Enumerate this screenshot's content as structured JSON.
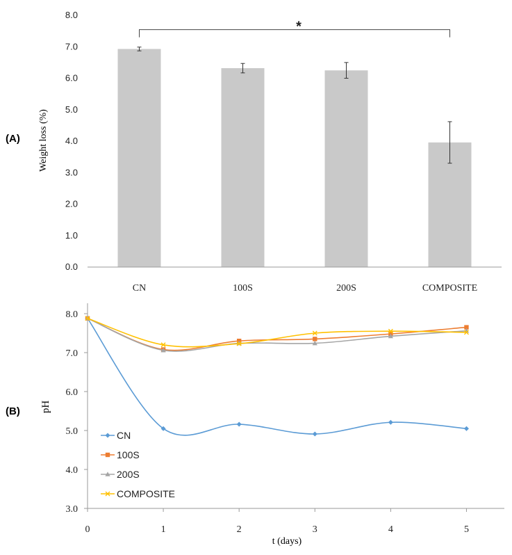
{
  "panel_labels": {
    "a": "(A)",
    "b": "(B)"
  },
  "colors": {
    "bar": "#c9c9c9",
    "axis": "#9a9a9a",
    "text": "#222222",
    "errorbar": "#333333",
    "cn": "#5b9bd5",
    "s100": "#ed7d31",
    "s200": "#a5a5a5",
    "composite": "#ffc000"
  },
  "chart_data": [
    {
      "type": "bar",
      "title": "",
      "xlabel": "",
      "ylabel": "Weight loss (%)",
      "ylim": [
        0,
        8
      ],
      "ytick_step": 1,
      "ytick_labels": [
        "0.0",
        "1.0",
        "2.0",
        "3.0",
        "4.0",
        "5.0",
        "6.0",
        "7.0",
        "8.0"
      ],
      "categories": [
        "CN",
        "100S",
        "200S",
        "COMPOSITE"
      ],
      "values": [
        6.93,
        6.32,
        6.25,
        3.96
      ],
      "errors": [
        0.06,
        0.15,
        0.25,
        0.66
      ],
      "significance": {
        "from": "CN",
        "to": "COMPOSITE",
        "label": "*",
        "y": 7.5
      }
    },
    {
      "type": "line",
      "title": "",
      "xlabel": "t (days)",
      "ylabel": "pH",
      "xlim": [
        0,
        5.5
      ],
      "ylim": [
        3,
        8
      ],
      "x": [
        0,
        1,
        2,
        3,
        4,
        5
      ],
      "xtick_labels": [
        "0",
        "1",
        "2",
        "3",
        "4",
        "5"
      ],
      "ytick_labels": [
        "3.0",
        "4.0",
        "5.0",
        "6.0",
        "7.0",
        "8.0"
      ],
      "legend_position": "bottom-left",
      "series": [
        {
          "name": "CN",
          "color_key": "cn",
          "marker": "diamond",
          "values": [
            7.88,
            5.05,
            5.16,
            4.91,
            5.21,
            5.05
          ]
        },
        {
          "name": "100S",
          "color_key": "s100",
          "marker": "square",
          "values": [
            7.88,
            7.08,
            7.3,
            7.35,
            7.48,
            7.65
          ]
        },
        {
          "name": "200S",
          "color_key": "s200",
          "marker": "triangle",
          "values": [
            7.88,
            7.06,
            7.24,
            7.24,
            7.42,
            7.56
          ]
        },
        {
          "name": "COMPOSITE",
          "color_key": "composite",
          "marker": "x",
          "values": [
            7.88,
            7.2,
            7.23,
            7.5,
            7.55,
            7.52
          ]
        }
      ]
    }
  ]
}
